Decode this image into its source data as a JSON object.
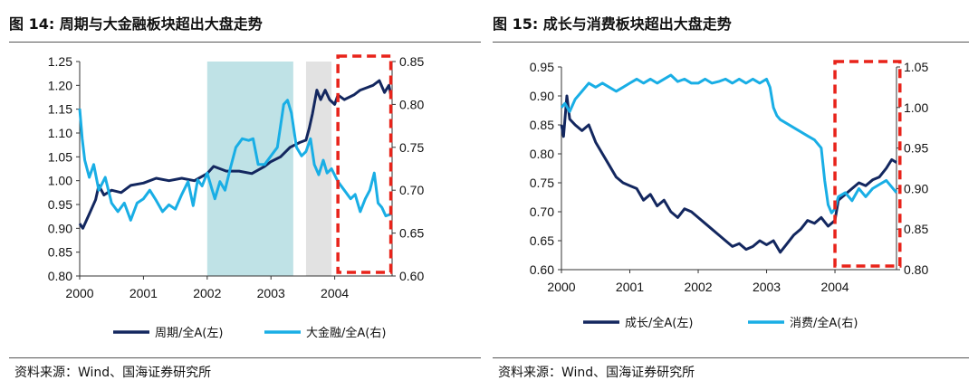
{
  "chart_data": [
    {
      "type": "line",
      "title": "图 14: 周期与大金融板块超出大盘走势",
      "source": "资料来源：Wind、国海证券研究所",
      "x_ticks": [
        "2000",
        "2001",
        "2002",
        "2003",
        "2004"
      ],
      "xlim": [
        2000,
        2004.9
      ],
      "ylim_left": [
        0.8,
        1.25
      ],
      "ylim_right": [
        0.6,
        0.85
      ],
      "y_ticks_left": [
        "0.80",
        "0.85",
        "0.90",
        "0.95",
        "1.00",
        "1.05",
        "1.10",
        "1.15",
        "1.20",
        "1.25"
      ],
      "y_ticks_right": [
        "0.60",
        "0.65",
        "0.70",
        "0.75",
        "0.80",
        "0.85"
      ],
      "shaded_periods": [
        {
          "from": 2002.0,
          "to": 2003.35,
          "color": "#bfe2e6"
        },
        {
          "from": 2003.55,
          "to": 2003.95,
          "color": "#e2e2e2"
        }
      ],
      "highlight_box": {
        "from": 2004.05,
        "to": 2004.88,
        "color": "#e8231a"
      },
      "series": [
        {
          "name": "周期/全A(左)",
          "axis": "left",
          "color": "#13275f",
          "points": [
            [
              2000.0,
              0.91
            ],
            [
              2000.05,
              0.9
            ],
            [
              2000.15,
              0.93
            ],
            [
              2000.25,
              0.96
            ],
            [
              2000.3,
              0.99
            ],
            [
              2000.38,
              0.97
            ],
            [
              2000.5,
              0.98
            ],
            [
              2000.65,
              0.975
            ],
            [
              2000.8,
              0.99
            ],
            [
              2001.0,
              0.995
            ],
            [
              2001.2,
              1.005
            ],
            [
              2001.4,
              1.0
            ],
            [
              2001.6,
              1.005
            ],
            [
              2001.8,
              1.0
            ],
            [
              2002.0,
              1.015
            ],
            [
              2002.1,
              1.03
            ],
            [
              2002.3,
              1.02
            ],
            [
              2002.5,
              1.02
            ],
            [
              2002.7,
              1.015
            ],
            [
              2002.9,
              1.03
            ],
            [
              2003.0,
              1.04
            ],
            [
              2003.15,
              1.05
            ],
            [
              2003.3,
              1.07
            ],
            [
              2003.45,
              1.08
            ],
            [
              2003.55,
              1.085
            ],
            [
              2003.6,
              1.11
            ],
            [
              2003.65,
              1.14
            ],
            [
              2003.72,
              1.19
            ],
            [
              2003.78,
              1.17
            ],
            [
              2003.85,
              1.19
            ],
            [
              2003.92,
              1.17
            ],
            [
              2004.0,
              1.16
            ],
            [
              2004.05,
              1.18
            ],
            [
              2004.15,
              1.17
            ],
            [
              2004.3,
              1.18
            ],
            [
              2004.4,
              1.19
            ],
            [
              2004.5,
              1.195
            ],
            [
              2004.6,
              1.2
            ],
            [
              2004.7,
              1.21
            ],
            [
              2004.78,
              1.185
            ],
            [
              2004.85,
              1.2
            ],
            [
              2004.88,
              1.18
            ]
          ]
        },
        {
          "name": "大金融/全A(右)",
          "axis": "right",
          "color": "#19aee5",
          "points": [
            [
              2000.0,
              0.795
            ],
            [
              2000.04,
              0.76
            ],
            [
              2000.08,
              0.735
            ],
            [
              2000.15,
              0.715
            ],
            [
              2000.22,
              0.73
            ],
            [
              2000.3,
              0.7
            ],
            [
              2000.4,
              0.715
            ],
            [
              2000.5,
              0.685
            ],
            [
              2000.6,
              0.675
            ],
            [
              2000.7,
              0.685
            ],
            [
              2000.8,
              0.665
            ],
            [
              2000.9,
              0.685
            ],
            [
              2001.0,
              0.69
            ],
            [
              2001.1,
              0.7
            ],
            [
              2001.2,
              0.688
            ],
            [
              2001.3,
              0.675
            ],
            [
              2001.4,
              0.683
            ],
            [
              2001.5,
              0.678
            ],
            [
              2001.6,
              0.695
            ],
            [
              2001.7,
              0.71
            ],
            [
              2001.78,
              0.682
            ],
            [
              2001.85,
              0.712
            ],
            [
              2001.92,
              0.705
            ],
            [
              2002.0,
              0.72
            ],
            [
              2002.08,
              0.7
            ],
            [
              2002.12,
              0.69
            ],
            [
              2002.2,
              0.71
            ],
            [
              2002.28,
              0.7
            ],
            [
              2002.36,
              0.725
            ],
            [
              2002.45,
              0.75
            ],
            [
              2002.55,
              0.76
            ],
            [
              2002.65,
              0.758
            ],
            [
              2002.72,
              0.76
            ],
            [
              2002.8,
              0.73
            ],
            [
              2002.9,
              0.73
            ],
            [
              2003.0,
              0.74
            ],
            [
              2003.1,
              0.75
            ],
            [
              2003.2,
              0.8
            ],
            [
              2003.26,
              0.805
            ],
            [
              2003.32,
              0.79
            ],
            [
              2003.4,
              0.75
            ],
            [
              2003.48,
              0.74
            ],
            [
              2003.55,
              0.745
            ],
            [
              2003.62,
              0.76
            ],
            [
              2003.68,
              0.73
            ],
            [
              2003.75,
              0.718
            ],
            [
              2003.82,
              0.735
            ],
            [
              2003.88,
              0.72
            ],
            [
              2003.95,
              0.725
            ],
            [
              2004.05,
              0.71
            ],
            [
              2004.15,
              0.7
            ],
            [
              2004.25,
              0.69
            ],
            [
              2004.32,
              0.695
            ],
            [
              2004.4,
              0.675
            ],
            [
              2004.48,
              0.69
            ],
            [
              2004.55,
              0.7
            ],
            [
              2004.62,
              0.72
            ],
            [
              2004.68,
              0.685
            ],
            [
              2004.74,
              0.68
            ],
            [
              2004.8,
              0.67
            ],
            [
              2004.88,
              0.672
            ]
          ]
        }
      ]
    },
    {
      "type": "line",
      "title": "图 15: 成长与消费板块超出大盘走势",
      "source": "资料来源：Wind、国海证券研究所",
      "x_ticks": [
        "2000",
        "2001",
        "2002",
        "2003",
        "2004"
      ],
      "xlim": [
        2000,
        2004.9
      ],
      "ylim_left": [
        0.6,
        0.95
      ],
      "ylim_right": [
        0.8,
        1.05
      ],
      "y_ticks_left": [
        "0.60",
        "0.65",
        "0.70",
        "0.75",
        "0.80",
        "0.85",
        "0.90",
        "0.95"
      ],
      "y_ticks_right": [
        "0.80",
        "0.85",
        "0.90",
        "0.95",
        "1.00",
        "1.05"
      ],
      "shaded_periods": [],
      "highlight_box": {
        "from": 2004.0,
        "to": 2004.95,
        "color": "#e8231a"
      },
      "series": [
        {
          "name": "成长/全A(左)",
          "axis": "left",
          "color": "#13275f",
          "points": [
            [
              2000.0,
              0.85
            ],
            [
              2000.03,
              0.83
            ],
            [
              2000.08,
              0.9
            ],
            [
              2000.12,
              0.86
            ],
            [
              2000.2,
              0.85
            ],
            [
              2000.3,
              0.84
            ],
            [
              2000.4,
              0.85
            ],
            [
              2000.5,
              0.82
            ],
            [
              2000.6,
              0.8
            ],
            [
              2000.7,
              0.78
            ],
            [
              2000.8,
              0.76
            ],
            [
              2000.9,
              0.75
            ],
            [
              2001.0,
              0.745
            ],
            [
              2001.1,
              0.74
            ],
            [
              2001.2,
              0.72
            ],
            [
              2001.3,
              0.73
            ],
            [
              2001.4,
              0.71
            ],
            [
              2001.5,
              0.72
            ],
            [
              2001.6,
              0.7
            ],
            [
              2001.7,
              0.69
            ],
            [
              2001.8,
              0.705
            ],
            [
              2001.9,
              0.7
            ],
            [
              2002.0,
              0.69
            ],
            [
              2002.1,
              0.68
            ],
            [
              2002.2,
              0.67
            ],
            [
              2002.3,
              0.66
            ],
            [
              2002.4,
              0.65
            ],
            [
              2002.5,
              0.64
            ],
            [
              2002.6,
              0.645
            ],
            [
              2002.7,
              0.635
            ],
            [
              2002.8,
              0.64
            ],
            [
              2002.9,
              0.65
            ],
            [
              2003.0,
              0.643
            ],
            [
              2003.1,
              0.65
            ],
            [
              2003.2,
              0.63
            ],
            [
              2003.3,
              0.645
            ],
            [
              2003.4,
              0.66
            ],
            [
              2003.5,
              0.67
            ],
            [
              2003.6,
              0.685
            ],
            [
              2003.7,
              0.68
            ],
            [
              2003.8,
              0.69
            ],
            [
              2003.9,
              0.675
            ],
            [
              2004.0,
              0.685
            ],
            [
              2004.05,
              0.72
            ],
            [
              2004.15,
              0.73
            ],
            [
              2004.25,
              0.74
            ],
            [
              2004.35,
              0.75
            ],
            [
              2004.45,
              0.745
            ],
            [
              2004.55,
              0.755
            ],
            [
              2004.65,
              0.76
            ],
            [
              2004.75,
              0.775
            ],
            [
              2004.83,
              0.79
            ],
            [
              2004.9,
              0.785
            ]
          ]
        },
        {
          "name": "消费/全A(右)",
          "axis": "right",
          "color": "#19aee5",
          "points": [
            [
              2000.0,
              1.0
            ],
            [
              2000.05,
              1.005
            ],
            [
              2000.12,
              0.995
            ],
            [
              2000.2,
              1.01
            ],
            [
              2000.3,
              1.02
            ],
            [
              2000.4,
              1.03
            ],
            [
              2000.5,
              1.025
            ],
            [
              2000.6,
              1.03
            ],
            [
              2000.7,
              1.025
            ],
            [
              2000.8,
              1.02
            ],
            [
              2000.9,
              1.025
            ],
            [
              2001.0,
              1.03
            ],
            [
              2001.1,
              1.035
            ],
            [
              2001.2,
              1.03
            ],
            [
              2001.3,
              1.035
            ],
            [
              2001.4,
              1.03
            ],
            [
              2001.5,
              1.035
            ],
            [
              2001.6,
              1.04
            ],
            [
              2001.7,
              1.032
            ],
            [
              2001.8,
              1.035
            ],
            [
              2001.9,
              1.03
            ],
            [
              2002.0,
              1.03
            ],
            [
              2002.1,
              1.035
            ],
            [
              2002.2,
              1.03
            ],
            [
              2002.3,
              1.032
            ],
            [
              2002.4,
              1.035
            ],
            [
              2002.5,
              1.03
            ],
            [
              2002.6,
              1.035
            ],
            [
              2002.7,
              1.03
            ],
            [
              2002.8,
              1.035
            ],
            [
              2002.9,
              1.03
            ],
            [
              2003.0,
              1.035
            ],
            [
              2003.05,
              1.025
            ],
            [
              2003.1,
              1.0
            ],
            [
              2003.15,
              0.99
            ],
            [
              2003.2,
              0.985
            ],
            [
              2003.3,
              0.98
            ],
            [
              2003.4,
              0.975
            ],
            [
              2003.5,
              0.97
            ],
            [
              2003.6,
              0.965
            ],
            [
              2003.7,
              0.96
            ],
            [
              2003.8,
              0.95
            ],
            [
              2003.85,
              0.91
            ],
            [
              2003.9,
              0.88
            ],
            [
              2003.95,
              0.87
            ],
            [
              2004.0,
              0.875
            ],
            [
              2004.05,
              0.89
            ],
            [
              2004.15,
              0.895
            ],
            [
              2004.25,
              0.885
            ],
            [
              2004.35,
              0.9
            ],
            [
              2004.45,
              0.89
            ],
            [
              2004.55,
              0.9
            ],
            [
              2004.65,
              0.905
            ],
            [
              2004.75,
              0.91
            ],
            [
              2004.85,
              0.9
            ],
            [
              2004.9,
              0.895
            ]
          ]
        }
      ]
    }
  ]
}
